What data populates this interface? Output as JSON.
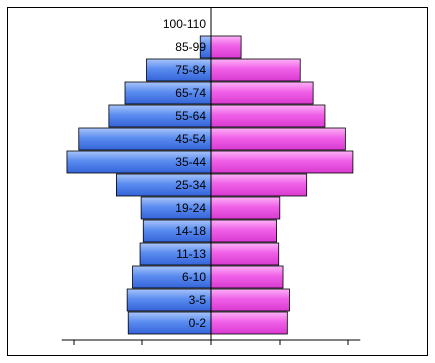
{
  "chart_data": {
    "type": "bar",
    "orientation": "horizontal",
    "layout": "population-pyramid",
    "title": "",
    "xlabel": "",
    "ylabel": "",
    "categories": [
      "100-110",
      "85-99",
      "75-84",
      "65-74",
      "55-64",
      "45-54",
      "35-44",
      "25-34",
      "19-24",
      "14-18",
      "11-13",
      "6-10",
      "3-5",
      "0-2"
    ],
    "series": [
      {
        "side": "left",
        "color": "#5b8cf0",
        "values": [
          0,
          1,
          6,
          8,
          9.5,
          12.3,
          13.4,
          8.8,
          6.5,
          6.3,
          6.6,
          7.3,
          7.8,
          7.7
        ]
      },
      {
        "side": "right",
        "color": "#f060e8",
        "values": [
          0,
          2.8,
          8.3,
          9.5,
          10.6,
          12.5,
          13.2,
          8.9,
          6.4,
          6.1,
          6.3,
          6.7,
          7.3,
          7.1
        ]
      }
    ],
    "xlim": [
      -15,
      15
    ],
    "x_ticks": [
      -10,
      -5,
      0,
      5,
      10
    ],
    "tick_labels_visible": false,
    "grid": false,
    "legend": "none"
  }
}
